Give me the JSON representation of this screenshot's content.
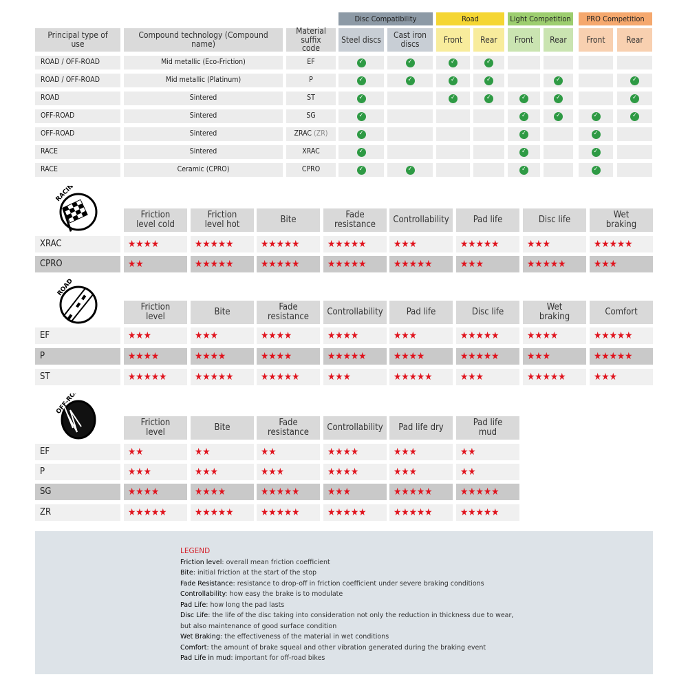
{
  "compat": {
    "groups": [
      {
        "label": "Disc Compatibility",
        "color": "#8d9aa6",
        "cell_color": "#c8ced5"
      },
      {
        "label": "Road",
        "color": "#f5d633",
        "cell_color": "#f8ec9c"
      },
      {
        "label": "Light Competition",
        "color": "#9dce6f",
        "cell_color": "#cae4b1"
      },
      {
        "label": "PRO Competition",
        "color": "#f5a86e",
        "cell_color": "#f8d0b0"
      }
    ],
    "headers": [
      "Principal type of use",
      "Compound technology (Compound name)",
      "Material suffix code",
      "Steel discs",
      "Cast iron discs",
      "Front",
      "Rear",
      "Front",
      "Rear",
      "Front",
      "Rear"
    ],
    "rows": [
      {
        "type": "ROAD / OFF-ROAD",
        "compound": "Mid metallic (Eco-Friction)",
        "code": "EF",
        "code_alt": "",
        "checks": [
          true,
          true,
          true,
          true,
          false,
          false,
          false,
          false
        ]
      },
      {
        "type": "ROAD / OFF-ROAD",
        "compound": "Mid metallic (Platinum)",
        "code": "P",
        "code_alt": "",
        "checks": [
          true,
          true,
          true,
          true,
          false,
          true,
          false,
          true
        ]
      },
      {
        "type": "ROAD",
        "compound": "Sintered",
        "code": "ST",
        "code_alt": "",
        "checks": [
          true,
          false,
          true,
          true,
          true,
          true,
          false,
          true
        ]
      },
      {
        "type": "OFF-ROAD",
        "compound": "Sintered",
        "code": "SG",
        "code_alt": "",
        "checks": [
          true,
          false,
          false,
          false,
          true,
          true,
          true,
          true
        ]
      },
      {
        "type": "OFF-ROAD",
        "compound": "Sintered",
        "code": "ZRAC",
        "code_alt": "(ZR)",
        "checks": [
          true,
          false,
          false,
          false,
          true,
          false,
          true,
          false
        ]
      },
      {
        "type": "RACE",
        "compound": "Sintered",
        "code": "XRAC",
        "code_alt": "",
        "checks": [
          true,
          false,
          false,
          false,
          true,
          false,
          true,
          false
        ]
      },
      {
        "type": "RACE",
        "compound": "Ceramic (CPRO)",
        "code": "CPRO",
        "code_alt": "",
        "checks": [
          true,
          true,
          false,
          false,
          true,
          false,
          true,
          false
        ]
      }
    ]
  },
  "ratings": [
    {
      "icon_label": "RACING",
      "icon": "checkered-flag-icon",
      "columns": [
        "Friction level cold",
        "Friction level hot",
        "Bite",
        "Fade resistance",
        "Controllability",
        "Pad life",
        "Disc life",
        "Wet braking"
      ],
      "rows": [
        {
          "code": "XRAC",
          "shade": "light",
          "stars": [
            4,
            5,
            5,
            5,
            3,
            5,
            3,
            5
          ]
        },
        {
          "code": "CPRO",
          "shade": "dark",
          "stars": [
            2,
            5,
            5,
            5,
            5,
            3,
            5,
            3
          ]
        }
      ]
    },
    {
      "icon_label": "ROAD",
      "icon": "road-icon",
      "columns": [
        "Friction level",
        "Bite",
        "Fade resistance",
        "Controllability",
        "Pad life",
        "Disc life",
        "Wet braking",
        "Comfort"
      ],
      "rows": [
        {
          "code": "EF",
          "shade": "light",
          "stars": [
            3,
            3,
            4,
            4,
            3,
            5,
            4,
            5
          ]
        },
        {
          "code": "P",
          "shade": "dark",
          "stars": [
            4,
            4,
            4,
            5,
            4,
            5,
            3,
            5
          ]
        },
        {
          "code": "ST",
          "shade": "light",
          "stars": [
            5,
            5,
            5,
            3,
            5,
            3,
            5,
            3
          ]
        }
      ]
    },
    {
      "icon_label": "OFF-ROAD",
      "icon": "mud-wheel-icon",
      "columns": [
        "Friction level",
        "Bite",
        "Fade resistance",
        "Controllability",
        "Pad life dry",
        "Pad life mud"
      ],
      "rows": [
        {
          "code": "EF",
          "shade": "light",
          "stars": [
            2,
            2,
            2,
            4,
            3,
            2
          ]
        },
        {
          "code": "P",
          "shade": "light",
          "stars": [
            3,
            3,
            3,
            4,
            3,
            2
          ]
        },
        {
          "code": "SG",
          "shade": "dark",
          "stars": [
            4,
            4,
            5,
            3,
            5,
            5
          ]
        },
        {
          "code": "ZR",
          "shade": "light",
          "stars": [
            5,
            5,
            5,
            5,
            5,
            5
          ]
        }
      ]
    }
  ],
  "legend": {
    "title": "LEGEND",
    "items": [
      {
        "term": "Friction level",
        "desc": ": overall mean friction coefficient"
      },
      {
        "term": "Bite",
        "desc": ": initial friction at the start of the stop"
      },
      {
        "term": "Fade Resistance",
        "desc": ": resistance to drop-off in friction coefficient under severe braking conditions"
      },
      {
        "term": "Controllability",
        "desc": ": how easy the brake is to modulate"
      },
      {
        "term": "Pad Life",
        "desc": ": how long the pad lasts"
      },
      {
        "term": "Disc Life",
        "desc": ": the life of the disc taking into consideration not only the reduction in thickness due to wear,"
      },
      {
        "term": "",
        "desc": "but also maintenance of good surface condition"
      },
      {
        "term": "Wet Braking",
        "desc": ": the effectiveness of the material in wet conditions"
      },
      {
        "term": "Comfort",
        "desc": ": the amount of brake squeal and other vibration generated during the braking event"
      },
      {
        "term": "Pad Life in mud",
        "desc": ": important for off-road bikes"
      }
    ]
  }
}
